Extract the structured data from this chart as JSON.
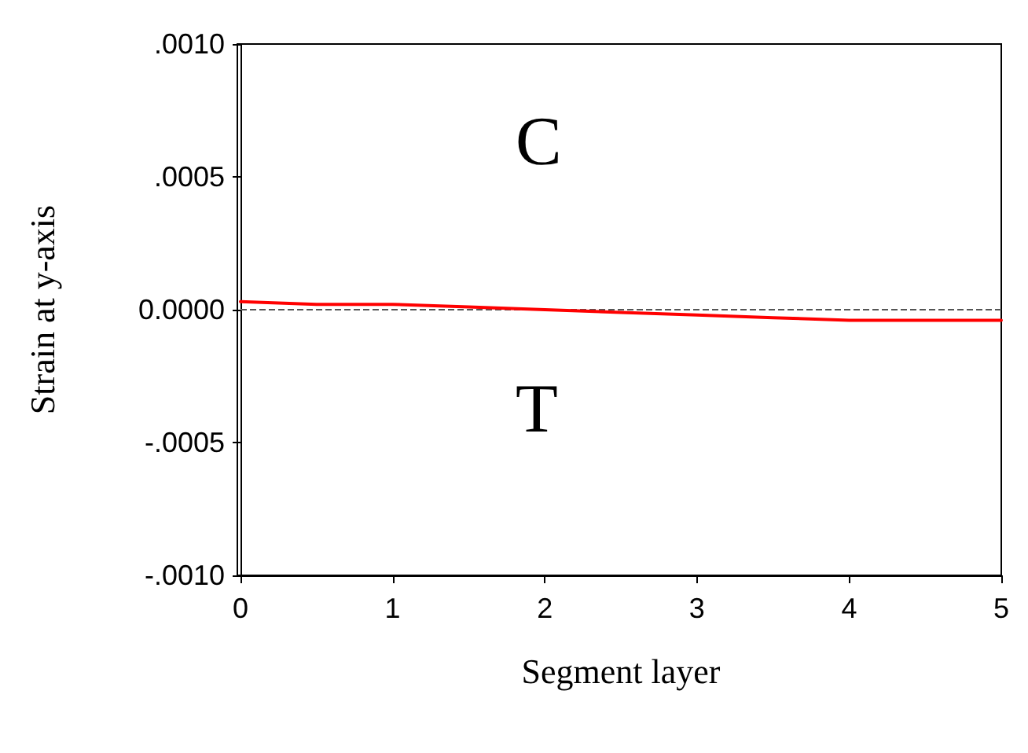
{
  "chart_data": {
    "type": "line",
    "xlabel": "Segment layer",
    "ylabel": "Strain at y-axis",
    "x": [
      0,
      0.5,
      1,
      1.5,
      2,
      2.5,
      3,
      3.5,
      4,
      4.5,
      5
    ],
    "series": [
      {
        "color": "#ff0000",
        "values": [
          3e-05,
          2e-05,
          2e-05,
          1e-05,
          0,
          -1e-05,
          -2e-05,
          -3e-05,
          -4e-05,
          -4e-05,
          -4e-05
        ]
      }
    ],
    "xlim": [
      0,
      5
    ],
    "xticks": [
      0,
      1,
      2,
      3,
      4,
      5
    ],
    "ylim": [
      -0.001,
      0.001
    ],
    "yticks": [
      {
        "value": -0.001,
        "label": "-.0010"
      },
      {
        "value": -0.0005,
        "label": "-.0005"
      },
      {
        "value": 0,
        "label": "0.0000"
      },
      {
        "value": 0.0005,
        "label": ".0005"
      },
      {
        "value": 0.001,
        "label": ".0010"
      }
    ],
    "ref_lines": [
      {
        "axis": "y",
        "value": 0,
        "color": "#555555",
        "line_style": "dashed"
      }
    ],
    "annotations": [
      "C",
      "T"
    ],
    "grid": false,
    "marker": "none",
    "line_style": "solid"
  }
}
